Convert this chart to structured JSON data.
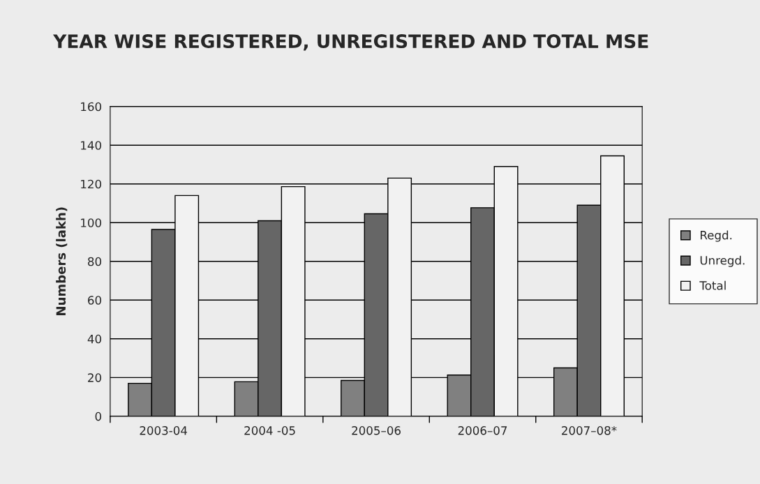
{
  "chart_data": {
    "type": "bar",
    "title": "YEAR WISE REGISTERED, UNREGISTERED AND TOTAL MSE",
    "ylabel": "Numbers (lakh)",
    "categories": [
      "2003-04",
      "2004 -05",
      "2005–06",
      "2006–07",
      "2007–08*"
    ],
    "series": [
      {
        "name": "Regd.",
        "color": "#808080",
        "values": [
          17.0,
          17.8,
          18.5,
          21.3,
          25.0
        ]
      },
      {
        "name": "Unregd.",
        "color": "#666666",
        "values": [
          96.5,
          101,
          104.6,
          107.7,
          109
        ]
      },
      {
        "name": "Total",
        "color": "#f2f2f2",
        "values": [
          114,
          118.6,
          123,
          129,
          134.5
        ]
      }
    ],
    "ylim": [
      0,
      160
    ],
    "yticks": [
      0,
      20,
      40,
      60,
      80,
      100,
      120,
      140,
      160
    ],
    "grid": "y",
    "legend": "right"
  }
}
